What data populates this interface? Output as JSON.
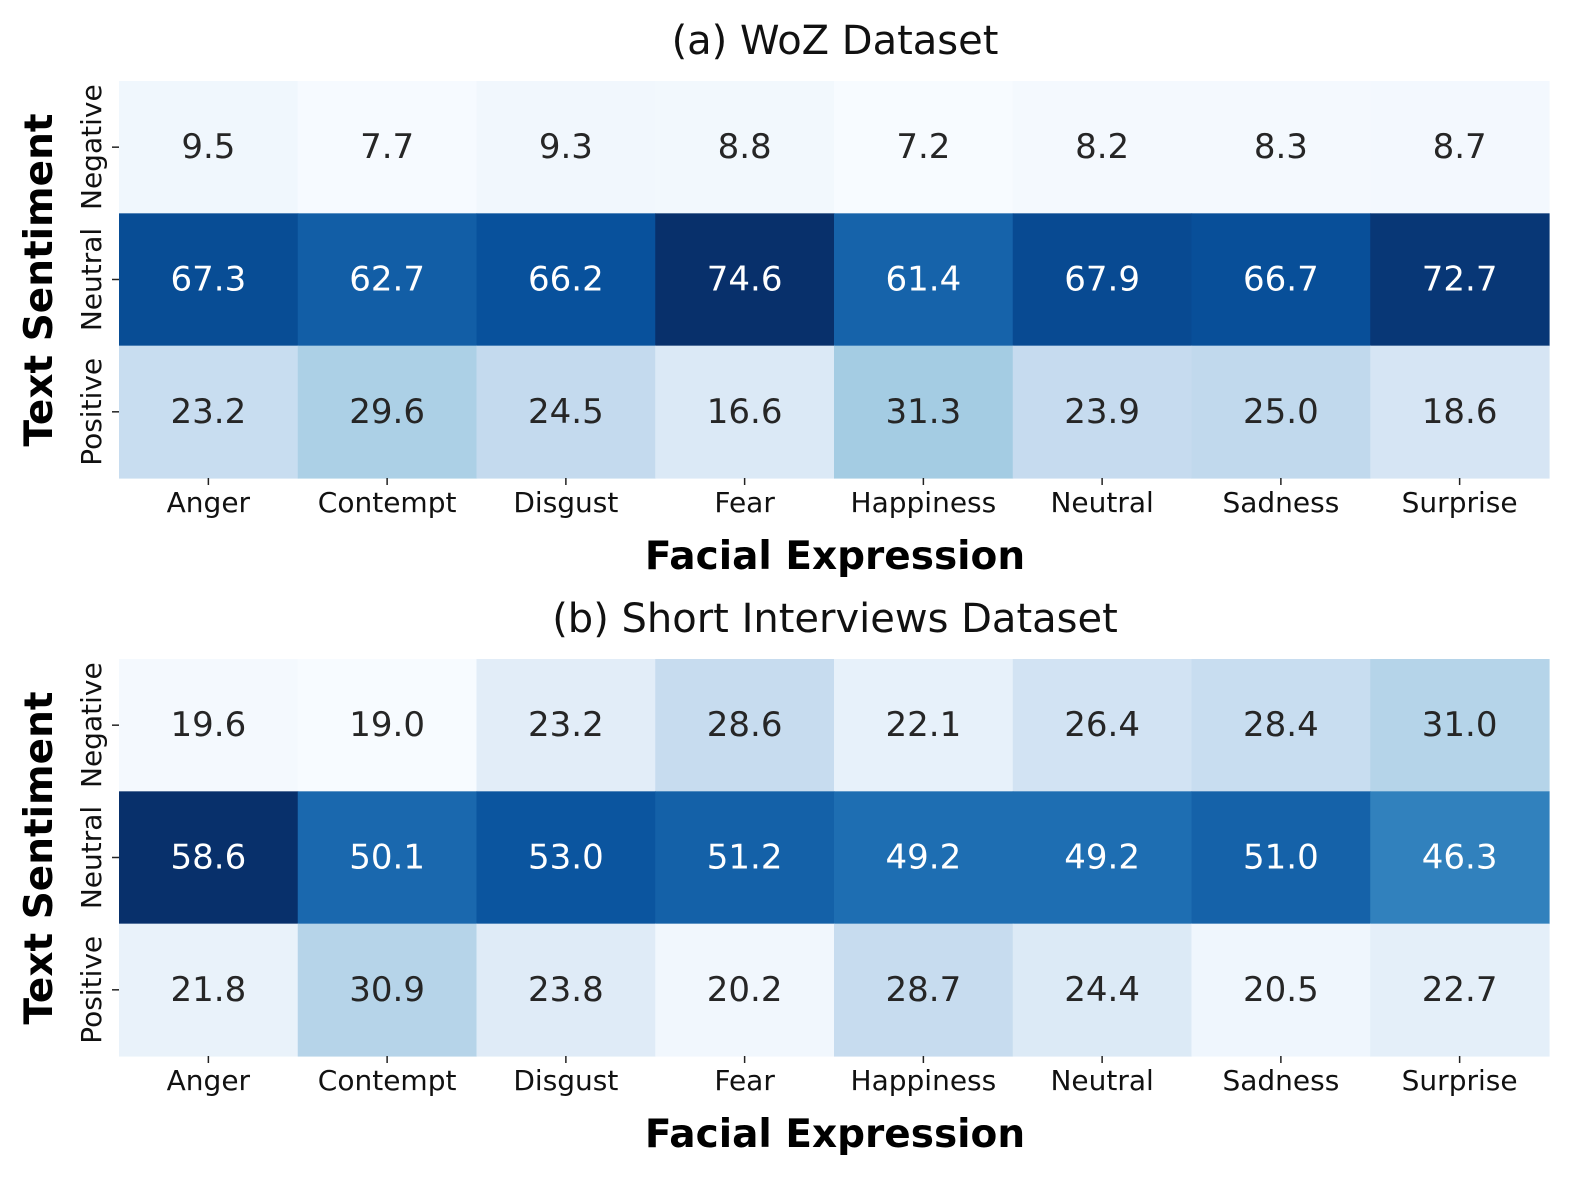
{
  "chart_data": [
    {
      "type": "heatmap",
      "title": "(a) WoZ Dataset",
      "xlabel": "Facial Expression",
      "ylabel": "Text Sentiment",
      "x": [
        "Anger",
        "Contempt",
        "Disgust",
        "Fear",
        "Happiness",
        "Neutral",
        "Sadness",
        "Surprise"
      ],
      "y": [
        "Negative",
        "Neutral",
        "Positive"
      ],
      "values": [
        [
          9.5,
          7.7,
          9.3,
          8.8,
          7.2,
          8.2,
          8.3,
          8.7
        ],
        [
          67.3,
          62.7,
          66.2,
          74.6,
          61.4,
          67.9,
          66.7,
          72.7
        ],
        [
          23.2,
          29.6,
          24.5,
          16.6,
          31.3,
          23.9,
          25.0,
          18.6
        ]
      ],
      "labels": [
        [
          "9.5",
          "7.7",
          "9.3",
          "8.8",
          "7.2",
          "8.2",
          "8.3",
          "8.7"
        ],
        [
          "67.3",
          "62.7",
          "66.2",
          "74.6",
          "61.4",
          "67.9",
          "66.7",
          "72.7"
        ],
        [
          "23.2",
          "29.6",
          "24.5",
          "16.6",
          "31.3",
          "23.9",
          "25.0",
          "18.6"
        ]
      ],
      "colormap": "Blues",
      "colorbar": false
    },
    {
      "type": "heatmap",
      "title": "(b) Short Interviews Dataset",
      "xlabel": "Facial Expression",
      "ylabel": "Text Sentiment",
      "x": [
        "Anger",
        "Contempt",
        "Disgust",
        "Fear",
        "Happiness",
        "Neutral",
        "Sadness",
        "Surprise"
      ],
      "y": [
        "Negative",
        "Neutral",
        "Positive"
      ],
      "values": [
        [
          19.6,
          19.0,
          23.2,
          28.6,
          22.1,
          26.4,
          28.4,
          31.0
        ],
        [
          58.6,
          50.1,
          53.0,
          51.2,
          49.2,
          49.2,
          51.0,
          46.3
        ],
        [
          21.8,
          30.9,
          23.8,
          20.2,
          28.7,
          24.4,
          20.5,
          22.7
        ]
      ],
      "labels": [
        [
          "19.6",
          "19.0",
          "23.2",
          "28.6",
          "22.1",
          "26.4",
          "28.4",
          "31.0"
        ],
        [
          "58.6",
          "50.1",
          "53.0",
          "51.2",
          "49.2",
          "49.2",
          "51.0",
          "46.3"
        ],
        [
          "21.8",
          "30.9",
          "23.8",
          "20.2",
          "28.7",
          "24.4",
          "20.5",
          "22.7"
        ]
      ],
      "colormap": "Blues",
      "colorbar": false
    }
  ]
}
